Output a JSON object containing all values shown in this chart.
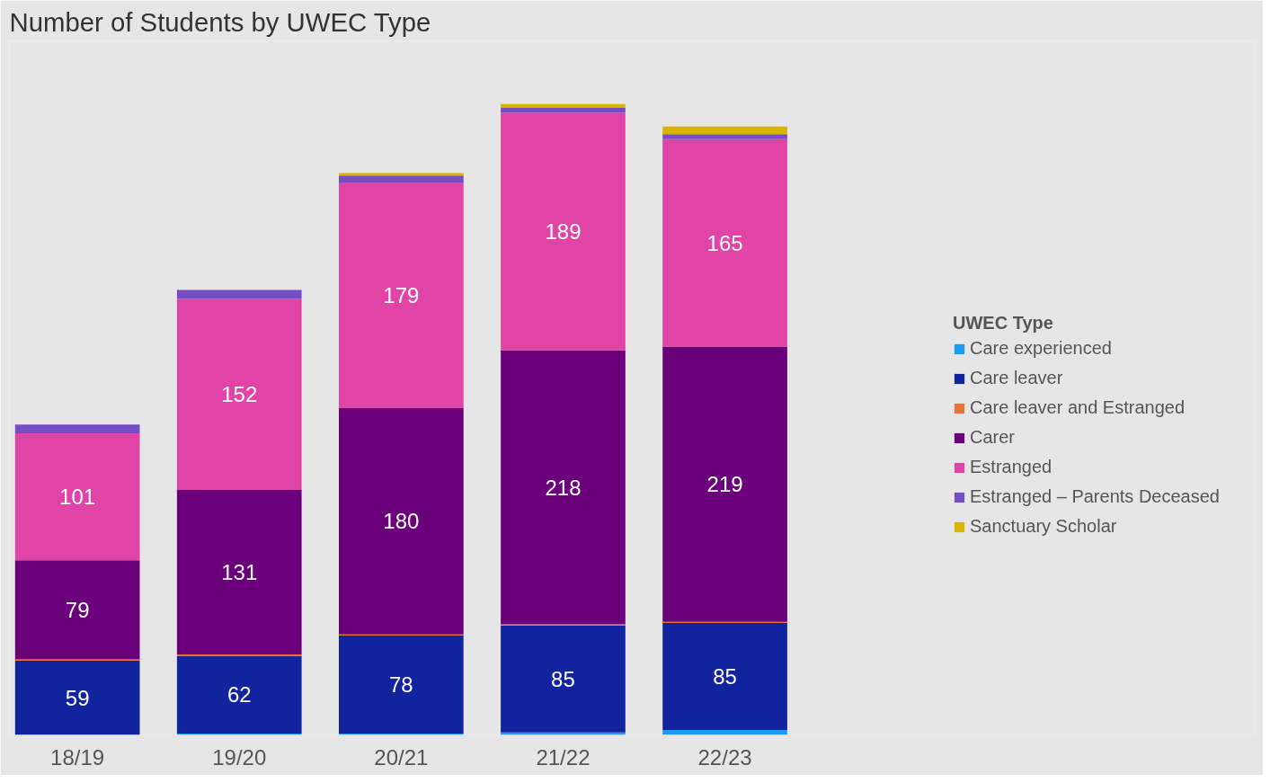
{
  "chart_data": {
    "type": "bar",
    "stacked": true,
    "title": "Number of Students by UWEC Type",
    "legend_title": "UWEC Type",
    "legend": "right",
    "categories": [
      "18/19",
      "19/20",
      "20/21",
      "21/22",
      "22/23"
    ],
    "series": [
      {
        "name": "Care experienced",
        "color": "#1a9bf0",
        "values": [
          0,
          1,
          1,
          2,
          4
        ]
      },
      {
        "name": "Care leaver",
        "color": "#12239e",
        "values": [
          59,
          62,
          78,
          85,
          85
        ],
        "value_labels": [
          "59",
          "62",
          "78",
          "85",
          "85"
        ]
      },
      {
        "name": "Care leaver and Estranged",
        "color": "#e8743b",
        "values": [
          1,
          1,
          1,
          1,
          1
        ]
      },
      {
        "name": "Carer",
        "color": "#6b007b",
        "values": [
          79,
          131,
          180,
          218,
          219
        ],
        "value_labels": [
          "79",
          "131",
          "180",
          "218",
          "219"
        ]
      },
      {
        "name": "Estranged",
        "color": "#e044a7",
        "values": [
          101,
          152,
          179,
          189,
          165
        ],
        "value_labels": [
          "101",
          "152",
          "179",
          "189",
          "165"
        ]
      },
      {
        "name": "Estranged – Parents Deceased",
        "color": "#744ec2",
        "values": [
          7,
          7,
          6,
          4,
          4
        ]
      },
      {
        "name": "Sanctuary Scholar",
        "color": "#d9b300",
        "values": [
          0,
          0,
          2,
          3,
          6
        ]
      }
    ]
  }
}
